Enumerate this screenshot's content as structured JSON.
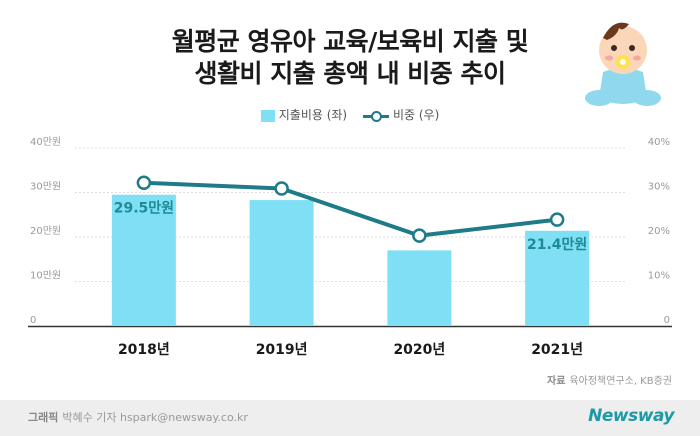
{
  "title": {
    "line1": "월평균 영유아 교육/보육비 지출 및",
    "line2": "생활비 지출 총액 내 비중 추이"
  },
  "legend": {
    "bar_label": "지출비용 (좌)",
    "line_label": "비중 (우)"
  },
  "source": {
    "label": "자료",
    "text": "육아정책연구소, KB증권"
  },
  "credit": {
    "label": "그래픽",
    "text": "박혜수 기자 hspark@newsway.co.kr"
  },
  "brand": "Newsway",
  "colors": {
    "bar": "#7fe0f5",
    "line": "#1e7b87",
    "bar_label": "#1e8a96"
  },
  "chart_data": {
    "type": "bar+line",
    "categories": [
      "2018년",
      "2019년",
      "2020년",
      "2021년"
    ],
    "left_axis": {
      "ticks": [
        "0",
        "10만원",
        "20만원",
        "30만원",
        "40만원"
      ],
      "ylim": [
        0,
        40
      ]
    },
    "right_axis": {
      "ticks": [
        "0",
        "10%",
        "20%",
        "30%",
        "40%"
      ],
      "ylim": [
        0,
        40
      ]
    },
    "series": [
      {
        "name": "지출비용 (좌)",
        "type": "bar",
        "values": [
          29.5,
          28.3,
          17.0,
          21.4
        ],
        "data_labels": [
          "29.5만원",
          "",
          "",
          "21.4만원"
        ]
      },
      {
        "name": "비중 (우)",
        "type": "line",
        "values": [
          32.2,
          30.9,
          20.3,
          23.9
        ]
      }
    ],
    "grid": true
  }
}
